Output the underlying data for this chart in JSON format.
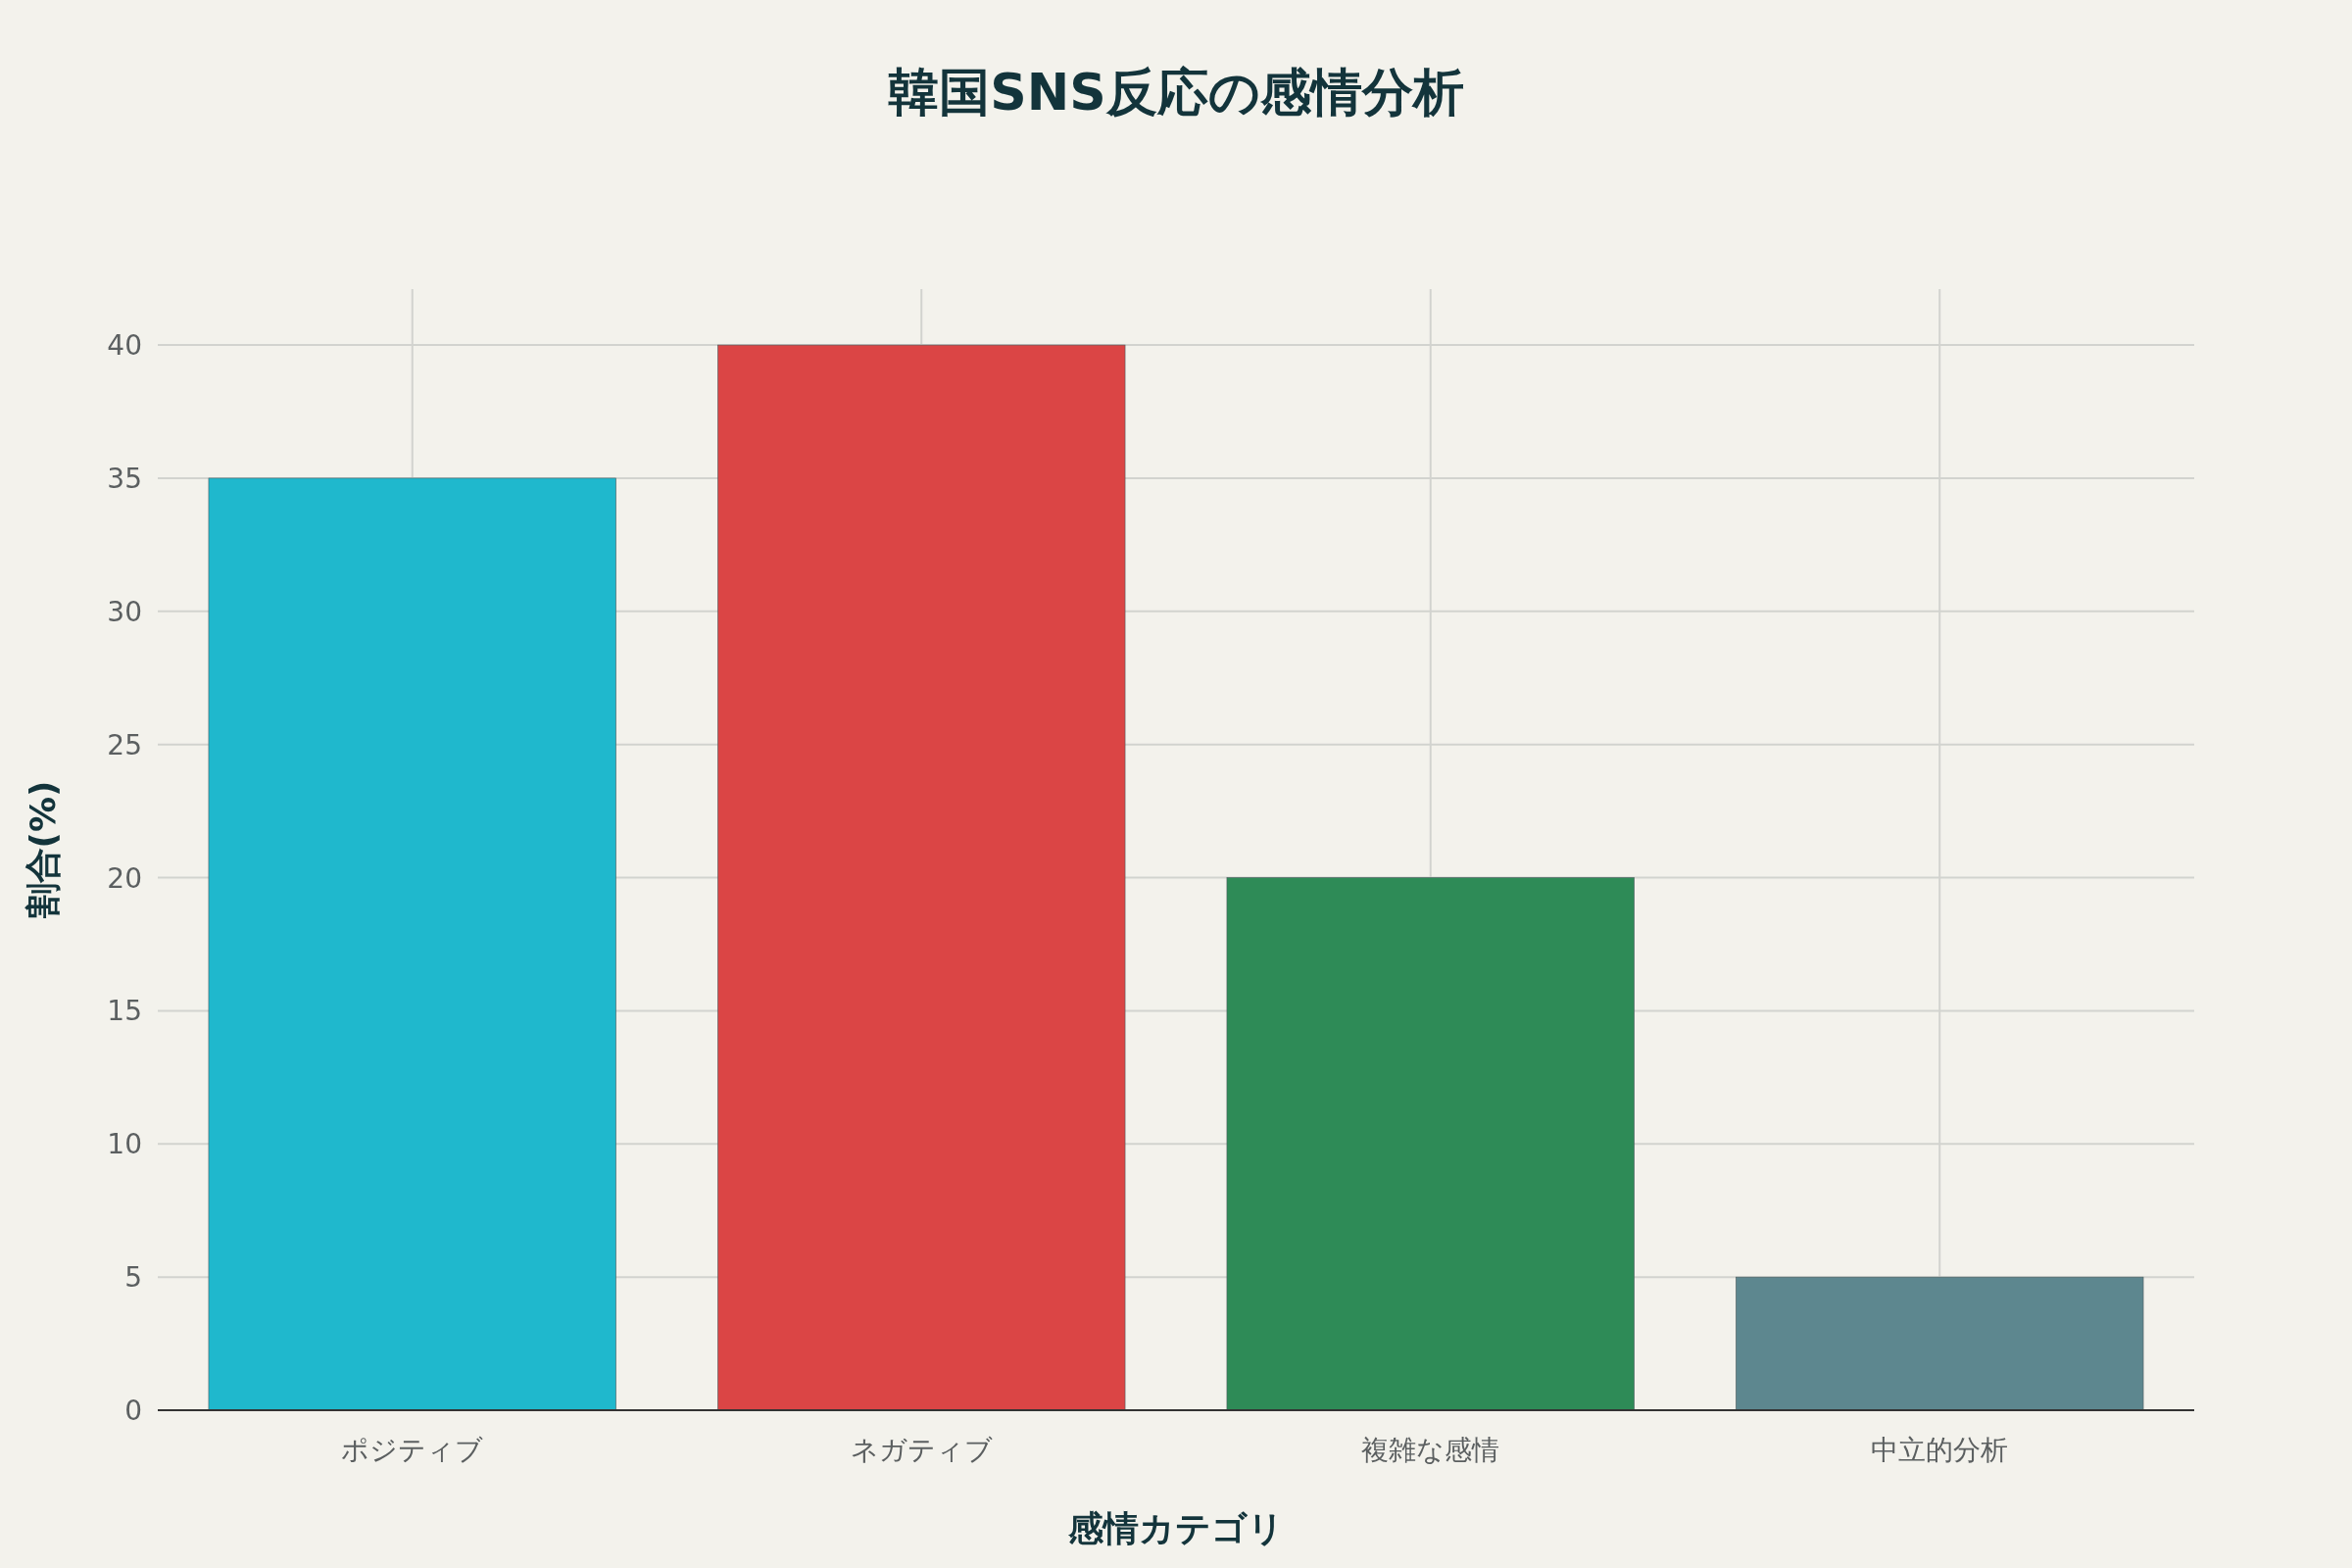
{
  "chart_data": {
    "type": "bar",
    "title": "韓国SNS反応の感情分析",
    "xlabel": "感情カテゴリ",
    "ylabel": "割合(%)",
    "categories": [
      "ポジティブ",
      "ネガティブ",
      "複雑な感情",
      "中立的分析"
    ],
    "values": [
      35,
      40,
      20,
      5
    ],
    "colors": [
      "#1fb8cd",
      "#db4545",
      "#2e8b57",
      "#5d878f"
    ],
    "ylim": [
      0,
      42.1
    ],
    "yticks": [
      0,
      5,
      10,
      15,
      20,
      25,
      30,
      35,
      40
    ],
    "grid": true
  }
}
